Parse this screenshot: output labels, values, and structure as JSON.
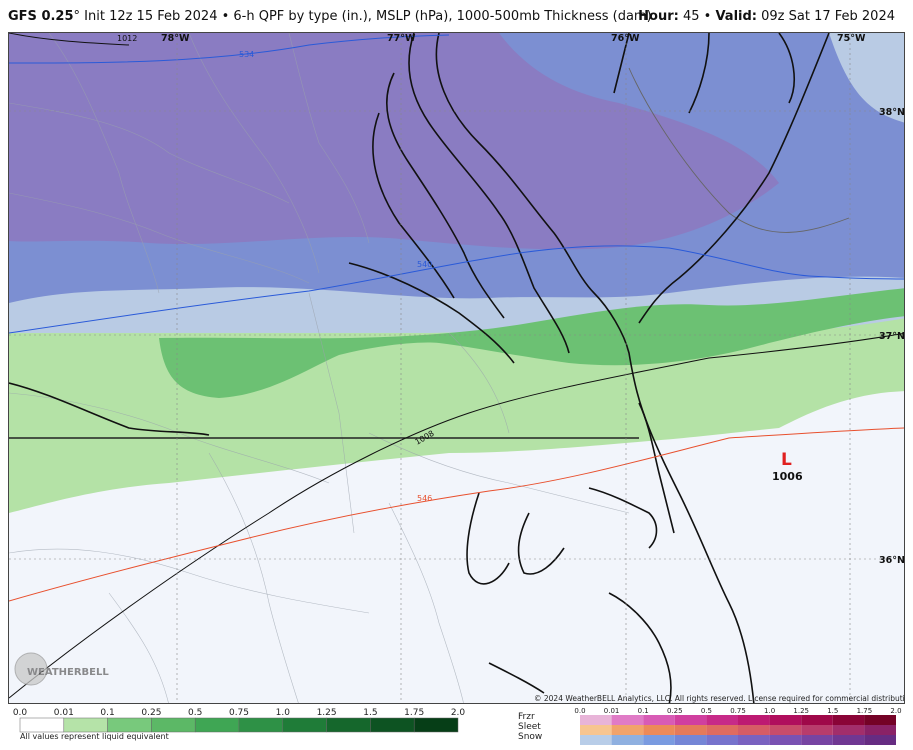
{
  "header": {
    "model": "GFS 0.25",
    "degree": "°",
    "title_rest": " Init 12z 15 Feb 2024 • 6-h QPF by type (in.), MSLP (hPa), 1000-500mb Thickness (dam)",
    "hour_label": "Hour:",
    "hour_value": "45",
    "valid_label": "Valid:",
    "valid_value": "09z Sat 17 Feb 2024"
  },
  "map": {
    "lon_labels": [
      "78°W",
      "77°W",
      "76°W",
      "75°W"
    ],
    "lat_labels": [
      "38°N",
      "37°N",
      "36°N"
    ],
    "isobar_labels": [
      "1012",
      "1008"
    ],
    "thickness_labels": [
      "534",
      "540",
      "546"
    ],
    "low_symbol": "L",
    "low_pressure": "1006",
    "watermark": "WEATHERBELL",
    "copyright": "© 2024 WeatherBELL Analytics, LLC. All rights reserved. License required for commercial distribution."
  },
  "legend": {
    "rain_ticks": [
      "0.0",
      "0.01",
      "0.1",
      "0.25",
      "0.5",
      "0.75",
      "1.0",
      "1.25",
      "1.5",
      "1.75",
      "2.0"
    ],
    "rain_colors": [
      "#ffffff",
      "#b5e3a8",
      "#78c97c",
      "#5cb866",
      "#3fa654",
      "#2e9146",
      "#1f7c38",
      "#15672c",
      "#0d5322",
      "#063e17"
    ],
    "note": "All values represent liquid equivalent",
    "ptype_labels": [
      "Frzr",
      "Sleet",
      "Snow"
    ],
    "ptype_ticks": [
      "0.0",
      "0.01",
      "0.1",
      "0.25",
      "0.5",
      "0.75",
      "1.0",
      "1.25",
      "1.5",
      "1.75",
      "2.0"
    ],
    "frzr_colors": [
      "#e8b4d8",
      "#e07bc6",
      "#d85bb5",
      "#d03f9f",
      "#c72a88",
      "#bd1a72",
      "#b00e5d",
      "#9f0849",
      "#8a0437",
      "#740226"
    ],
    "sleet_colors": [
      "#f7c590",
      "#f1a36b",
      "#ec8a59",
      "#e57a5a",
      "#df6b60",
      "#d65c66",
      "#c94c6a",
      "#b83c6c",
      "#a22e6b",
      "#8a2266"
    ],
    "snow_colors": [
      "#b8cde8",
      "#8fb0e0",
      "#7a9be0",
      "#7586d6",
      "#7773cc",
      "#7a62c0",
      "#7a52b2",
      "#7744a2",
      "#703792",
      "#662c82"
    ]
  }
}
